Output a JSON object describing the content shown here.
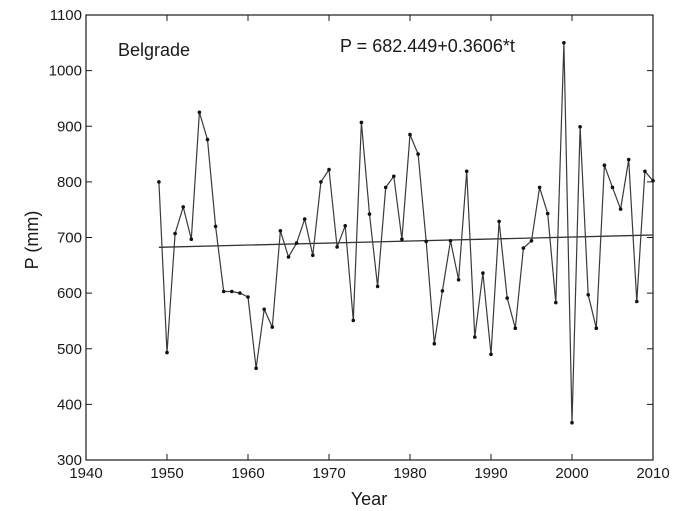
{
  "chart_data": {
    "type": "line",
    "xlabel": "Year",
    "ylabel": "P (mm)",
    "xlim": [
      1940,
      2010
    ],
    "ylim": [
      300,
      1100
    ],
    "xticks": [
      1940,
      1950,
      1960,
      1970,
      1980,
      1990,
      2000,
      2010
    ],
    "yticks": [
      300,
      400,
      500,
      600,
      700,
      800,
      900,
      1000,
      1100
    ],
    "grid": false,
    "annotations": {
      "station": "Belgrade",
      "equation": "P = 682.449+0.3606*t"
    },
    "series": [
      {
        "x": [
          1949,
          1950,
          1951,
          1952,
          1953,
          1954,
          1955,
          1956,
          1957,
          1958,
          1959,
          1960,
          1961,
          1962,
          1963,
          1964,
          1965,
          1966,
          1967,
          1968,
          1969,
          1970,
          1971,
          1972,
          1973,
          1974,
          1975,
          1976,
          1977,
          1978,
          1979,
          1980,
          1981,
          1982,
          1983,
          1984,
          1985,
          1986,
          1987,
          1988,
          1989,
          1990,
          1991,
          1992,
          1993,
          1994,
          1995,
          1996,
          1997,
          1998,
          1999,
          2000,
          2001,
          2002,
          2003,
          2004,
          2005,
          2006,
          2007,
          2008,
          2009,
          2010
        ],
        "values": [
          800,
          493,
          707,
          755,
          697,
          925,
          876,
          720,
          603,
          603,
          600,
          593,
          465,
          571,
          539,
          712,
          665,
          690,
          733,
          668,
          800,
          822,
          683,
          721,
          551,
          907,
          742,
          612,
          790,
          810,
          697,
          885,
          850,
          693,
          509,
          604,
          694,
          624,
          819,
          521,
          636,
          490,
          729,
          591,
          537,
          681,
          694,
          790,
          743,
          583,
          1050,
          367,
          899,
          597,
          537,
          830,
          790,
          751,
          840,
          585,
          819,
          802
        ]
      },
      {
        "name": "trend",
        "x": [
          1949,
          2010
        ],
        "values": [
          682.449,
          704.445
        ]
      }
    ]
  }
}
